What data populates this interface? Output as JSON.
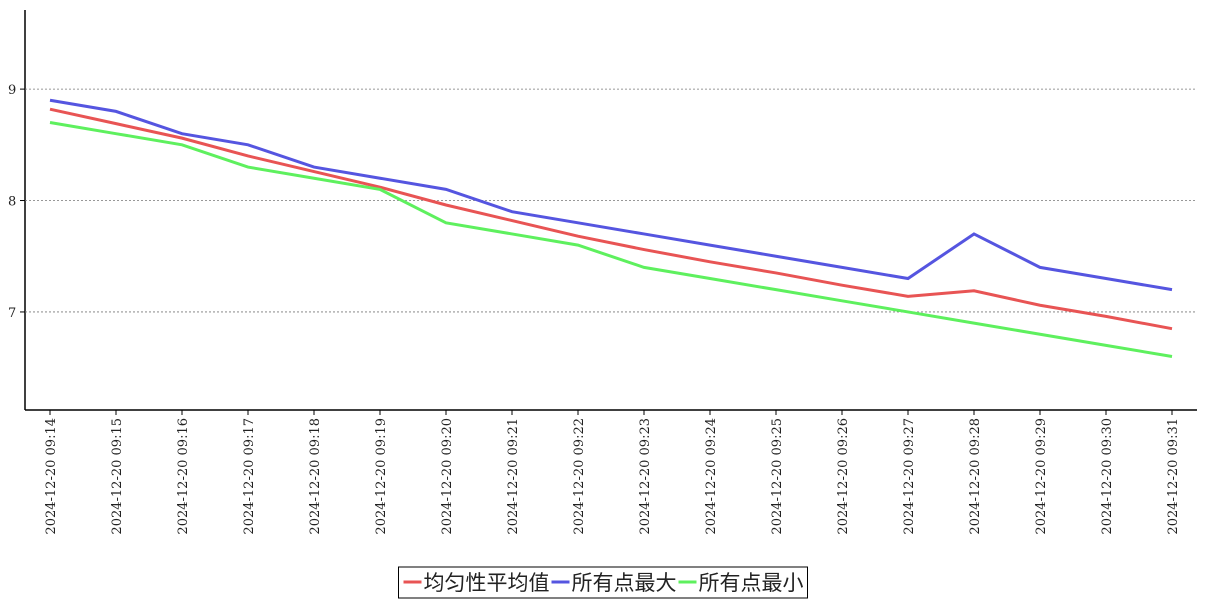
{
  "chart_data": {
    "type": "line",
    "categories": [
      "2024-12-20 09:14",
      "2024-12-20 09:15",
      "2024-12-20 09:16",
      "2024-12-20 09:17",
      "2024-12-20 09:18",
      "2024-12-20 09:19",
      "2024-12-20 09:20",
      "2024-12-20 09:21",
      "2024-12-20 09:22",
      "2024-12-20 09:23",
      "2024-12-20 09:24",
      "2024-12-20 09:25",
      "2024-12-20 09:26",
      "2024-12-20 09:27",
      "2024-12-20 09:28",
      "2024-12-20 09:29",
      "2024-12-20 09:30",
      "2024-12-20 09:31"
    ],
    "series": [
      {
        "name": "均匀性平均值",
        "color": "#e85454",
        "values": [
          8.82,
          8.69,
          8.56,
          8.4,
          8.26,
          8.12,
          7.96,
          7.82,
          7.68,
          7.56,
          7.45,
          7.35,
          7.24,
          7.14,
          7.19,
          7.06,
          6.96,
          6.85
        ]
      },
      {
        "name": "所有点最大",
        "color": "#5555e0",
        "values": [
          8.9,
          8.8,
          8.6,
          8.5,
          8.3,
          8.2,
          8.1,
          7.9,
          7.8,
          7.7,
          7.6,
          7.5,
          7.4,
          7.3,
          7.7,
          7.4,
          7.3,
          7.2
        ]
      },
      {
        "name": "所有点最小",
        "color": "#5ef05e",
        "values": [
          8.7,
          8.6,
          8.5,
          8.3,
          8.2,
          8.1,
          7.8,
          7.7,
          7.6,
          7.4,
          7.3,
          7.2,
          7.1,
          7.0,
          6.9,
          6.8,
          6.7,
          6.6
        ]
      }
    ],
    "ylim": [
      6.12,
      9.71
    ],
    "yticks": [
      7,
      8,
      9
    ],
    "grid": true,
    "legend": "bottom"
  }
}
